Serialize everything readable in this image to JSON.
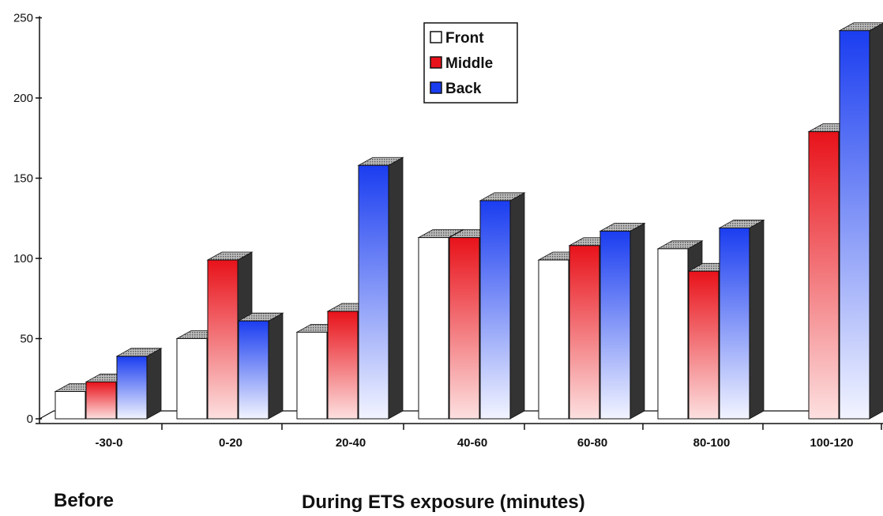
{
  "chart_data": {
    "type": "bar",
    "categories": [
      "-30-0",
      "0-20",
      "20-40",
      "40-60",
      "60-80",
      "80-100",
      "100-120"
    ],
    "series": [
      {
        "name": "Front",
        "values": [
          17,
          50,
          54,
          113,
          99,
          106,
          0
        ]
      },
      {
        "name": "Middle",
        "values": [
          23,
          99,
          67,
          113,
          108,
          92,
          179
        ]
      },
      {
        "name": "Back",
        "values": [
          39,
          61,
          158,
          136,
          117,
          119,
          242
        ]
      }
    ],
    "yticks": [
      0,
      50,
      100,
      150,
      200,
      250
    ],
    "ylim": [
      0,
      250
    ],
    "legend_position": "top-center",
    "grid": false,
    "three_d": true,
    "colors": {
      "Front": "#ffffff",
      "Middle": "#e8121a",
      "Back": "#1a3df0",
      "side": "#333333",
      "top": "#999999"
    },
    "annotations": {
      "before": "Before",
      "during": "During ETS exposure (minutes)"
    }
  }
}
